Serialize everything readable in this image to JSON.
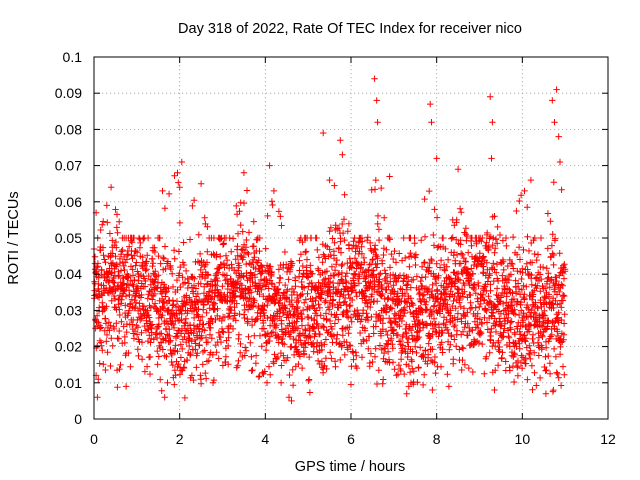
{
  "chart_data": {
    "type": "scatter",
    "title": "Day 318 of 2022, Rate Of TEC Index for receiver nico",
    "xlabel": "GPS time / hours",
    "ylabel": "ROTI / TECUs",
    "xlim": [
      0,
      12
    ],
    "ylim": [
      0,
      0.1
    ],
    "x_ticks": [
      "0",
      "2",
      "4",
      "6",
      "8",
      "10",
      "12"
    ],
    "y_ticks": [
      "0",
      "0.01",
      "0.02",
      "0.03",
      "0.04",
      "0.05",
      "0.06",
      "0.07",
      "0.08",
      "0.09",
      "0.1"
    ],
    "grid": true,
    "marker": "plus",
    "series": [
      {
        "color": "#ff0000",
        "x_range": [
          0,
          11
        ],
        "typical_range": [
          0.02,
          0.05
        ],
        "points": [
          [
            0.05,
            0.057
          ],
          [
            0.08,
            0.006
          ],
          [
            0.1,
            0.011
          ],
          [
            0.3,
            0.059
          ],
          [
            0.4,
            0.064
          ],
          [
            0.75,
            0.009
          ],
          [
            1.6,
            0.063
          ],
          [
            1.65,
            0.006
          ],
          [
            1.95,
            0.068
          ],
          [
            2.05,
            0.071
          ],
          [
            2.5,
            0.065
          ],
          [
            3.5,
            0.068
          ],
          [
            4.1,
            0.07
          ],
          [
            4.2,
            0.063
          ],
          [
            5.35,
            0.079
          ],
          [
            5.5,
            0.066
          ],
          [
            5.75,
            0.077
          ],
          [
            5.8,
            0.073
          ],
          [
            6.55,
            0.094
          ],
          [
            6.6,
            0.088
          ],
          [
            6.62,
            0.082
          ],
          [
            6.58,
            0.066
          ],
          [
            6.7,
            0.023
          ],
          [
            6.9,
            0.067
          ],
          [
            7.3,
            0.007
          ],
          [
            7.35,
            0.009
          ],
          [
            7.85,
            0.087
          ],
          [
            7.88,
            0.082
          ],
          [
            7.9,
            0.008
          ],
          [
            8.0,
            0.072
          ],
          [
            8.5,
            0.069
          ],
          [
            9.25,
            0.089
          ],
          [
            9.3,
            0.082
          ],
          [
            9.28,
            0.072
          ],
          [
            9.35,
            0.008
          ],
          [
            10.05,
            0.063
          ],
          [
            10.2,
            0.066
          ],
          [
            10.55,
            0.007
          ],
          [
            10.7,
            0.088
          ],
          [
            10.75,
            0.082
          ],
          [
            10.8,
            0.091
          ],
          [
            10.85,
            0.078
          ],
          [
            10.88,
            0.071
          ],
          [
            10.9,
            0.022
          ]
        ]
      }
    ]
  }
}
